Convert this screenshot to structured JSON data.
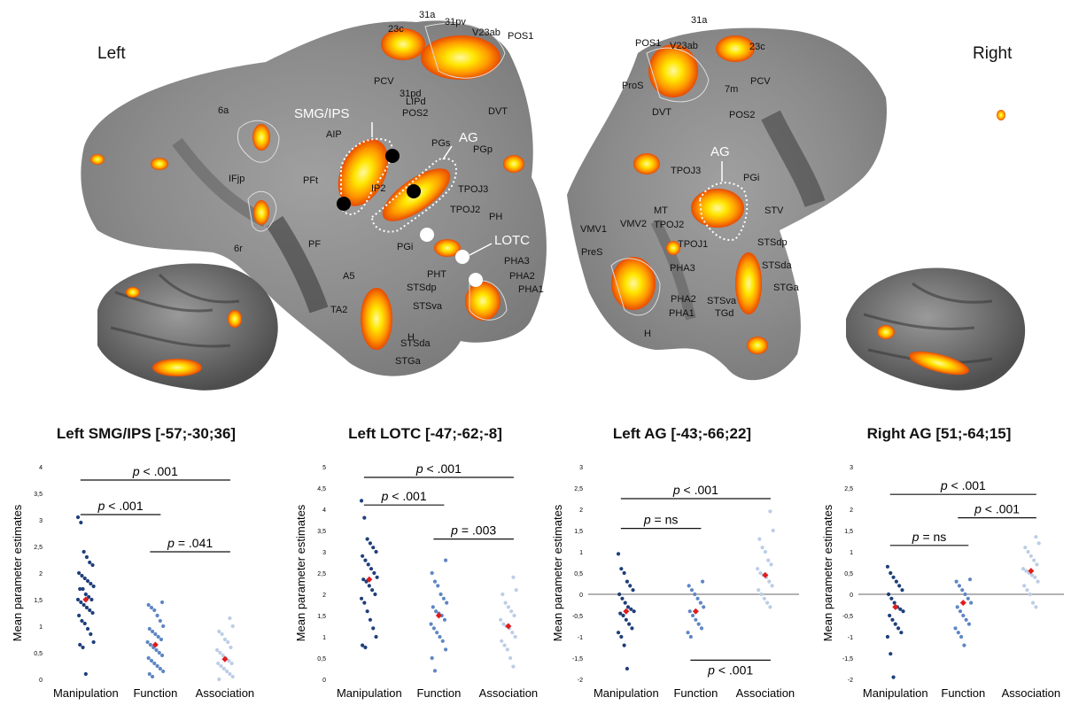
{
  "brain": {
    "left_label": "Left",
    "right_label": "Right",
    "highlight_labels": [
      "SMG/IPS",
      "AG",
      "LOTC",
      "AG"
    ],
    "left_regions": [
      "23c",
      "31a",
      "31pv",
      "V23ab",
      "POS1",
      "PCV",
      "31pd",
      "POS2",
      "DVT",
      "LIPd",
      "AIP",
      "PGs",
      "PGp",
      "6a",
      "PFt",
      "IP2",
      "TPOJ3",
      "TPOJ2",
      "PH",
      "IFjp",
      "PF",
      "PGi",
      "6r",
      "A5",
      "PHT",
      "STSdp",
      "PHA3",
      "PHA2",
      "PHA1",
      "TA2",
      "STSva",
      "H",
      "STSda",
      "STGa"
    ],
    "right_regions": [
      "31a",
      "POS1",
      "V23ab",
      "23c",
      "ProS",
      "7m",
      "PCV",
      "DVT",
      "POS2",
      "TPOJ3",
      "PGi",
      "MT",
      "STV",
      "VMV1",
      "VMV2",
      "TPOJ2",
      "TPOJ1",
      "STSdp",
      "PreS",
      "PHA3",
      "STSda",
      "PHA2",
      "STSva",
      "STGa",
      "PHA1",
      "TGd",
      "H"
    ]
  },
  "chart_data": [
    {
      "type": "scatter",
      "title": "Left SMG/IPS [-57;-30;36]",
      "ylabel": "Mean parameter estimates",
      "categories": [
        "Manipulation",
        "Function",
        "Association"
      ],
      "ylim": [
        0,
        4
      ],
      "yticks": [
        "0",
        "0,5",
        "1",
        "1,5",
        "2",
        "2,5",
        "3",
        "3,5",
        "4"
      ],
      "means": [
        1.5,
        0.65,
        0.38
      ],
      "series": [
        {
          "values": [
            3.05,
            2.95,
            2.4,
            2.3,
            2.2,
            2.15,
            2.0,
            1.95,
            1.9,
            1.85,
            1.8,
            1.75,
            1.7,
            1.7,
            1.6,
            1.55,
            1.5,
            1.5,
            1.45,
            1.4,
            1.35,
            1.3,
            1.25,
            1.2,
            1.1,
            1.05,
            0.95,
            0.85,
            0.7,
            0.65,
            0.6,
            0.1
          ]
        },
        {
          "values": [
            1.45,
            1.4,
            1.35,
            1.3,
            1.2,
            1.1,
            1.0,
            0.95,
            0.9,
            0.85,
            0.8,
            0.75,
            0.7,
            0.65,
            0.6,
            0.55,
            0.5,
            0.45,
            0.4,
            0.35,
            0.3,
            0.25,
            0.2,
            0.15,
            0.1,
            0.05
          ]
        },
        {
          "values": [
            1.15,
            1.0,
            0.9,
            0.85,
            0.75,
            0.7,
            0.6,
            0.55,
            0.5,
            0.45,
            0.4,
            0.35,
            0.3,
            0.3,
            0.25,
            0.2,
            0.15,
            0.1,
            0.05,
            0.0
          ]
        }
      ],
      "comparisons": [
        {
          "text": "p < .001",
          "from": 0,
          "to": 2,
          "y": 3.75
        },
        {
          "text": "p < .001",
          "from": 0,
          "to": 1,
          "y": 3.1
        },
        {
          "text": "p = .041",
          "from": 1,
          "to": 2,
          "y": 2.4
        }
      ]
    },
    {
      "type": "scatter",
      "title": "Left LOTC [-47;-62;-8]",
      "ylabel": "Mean parameter estimates",
      "categories": [
        "Manipulation",
        "Function",
        "Association"
      ],
      "ylim": [
        0,
        5
      ],
      "yticks": [
        "0",
        "0,5",
        "1",
        "1,5",
        "2",
        "2,5",
        "3",
        "3,5",
        "4",
        "4,5",
        "5"
      ],
      "means": [
        2.35,
        1.5,
        1.25
      ],
      "series": [
        {
          "values": [
            4.2,
            3.8,
            3.3,
            3.2,
            3.1,
            3.0,
            2.9,
            2.8,
            2.7,
            2.6,
            2.5,
            2.4,
            2.35,
            2.3,
            2.2,
            2.1,
            2.0,
            1.9,
            1.8,
            1.6,
            1.4,
            1.2,
            1.0,
            0.8,
            0.75
          ]
        },
        {
          "values": [
            2.8,
            2.5,
            2.3,
            2.2,
            2.0,
            1.9,
            1.8,
            1.7,
            1.6,
            1.55,
            1.5,
            1.4,
            1.3,
            1.2,
            1.1,
            1.0,
            0.9,
            0.7,
            0.5,
            0.2
          ]
        },
        {
          "values": [
            2.4,
            2.1,
            2.0,
            1.8,
            1.7,
            1.6,
            1.5,
            1.4,
            1.3,
            1.25,
            1.2,
            1.1,
            1.0,
            0.9,
            0.8,
            0.7,
            0.5,
            0.3
          ]
        }
      ],
      "comparisons": [
        {
          "text": "p < .001",
          "from": 0,
          "to": 2,
          "y": 4.75
        },
        {
          "text": "p < .001",
          "from": 0,
          "to": 1,
          "y": 4.1
        },
        {
          "text": "p = .003",
          "from": 1,
          "to": 2,
          "y": 3.3
        }
      ]
    },
    {
      "type": "scatter",
      "title": "Left AG [-43;-66;22]",
      "ylabel": "Mean parameter estimates",
      "categories": [
        "Manipulation",
        "Function",
        "Association"
      ],
      "ylim": [
        -2,
        3
      ],
      "yticks": [
        "-2",
        "-1,5",
        "-1",
        "-0,5",
        "0",
        "0,5",
        "1",
        "1,5",
        "2",
        "2,5",
        "3"
      ],
      "means": [
        -0.4,
        -0.4,
        0.45
      ],
      "series": [
        {
          "values": [
            0.95,
            0.6,
            0.5,
            0.3,
            0.2,
            0.1,
            0.0,
            -0.1,
            -0.2,
            -0.3,
            -0.35,
            -0.4,
            -0.45,
            -0.5,
            -0.6,
            -0.7,
            -0.8,
            -0.9,
            -1.0,
            -1.2,
            -1.75
          ]
        },
        {
          "values": [
            0.3,
            0.2,
            0.1,
            0.0,
            -0.1,
            -0.2,
            -0.3,
            -0.4,
            -0.5,
            -0.6,
            -0.7,
            -0.8,
            -0.9,
            -1.0
          ]
        },
        {
          "values": [
            1.95,
            1.5,
            1.3,
            1.1,
            1.0,
            0.8,
            0.7,
            0.6,
            0.5,
            0.45,
            0.4,
            0.3,
            0.2,
            0.1,
            0.0,
            -0.1,
            -0.2,
            -0.3
          ]
        }
      ],
      "comparisons": [
        {
          "text": "p < .001",
          "from": 0,
          "to": 2,
          "y": 2.25
        },
        {
          "text": "p = ns",
          "from": 0,
          "to": 1,
          "y": 1.55
        },
        {
          "text": "p < .001",
          "from": 1,
          "to": 2,
          "y": -1.55,
          "below": true
        }
      ]
    },
    {
      "type": "scatter",
      "title": "Right AG [51;-64;15]",
      "ylabel": "Mean parameter estimates",
      "categories": [
        "Manipulation",
        "Function",
        "Association"
      ],
      "ylim": [
        -2,
        3
      ],
      "yticks": [
        "-2",
        "-1,5",
        "-1",
        "-0,5",
        "0",
        "0,5",
        "1",
        "1,5",
        "2",
        "2,5",
        "3"
      ],
      "means": [
        -0.3,
        -0.2,
        0.55
      ],
      "series": [
        {
          "values": [
            0.65,
            0.5,
            0.4,
            0.3,
            0.2,
            0.1,
            0.0,
            -0.1,
            -0.2,
            -0.3,
            -0.35,
            -0.4,
            -0.5,
            -0.6,
            -0.7,
            -0.8,
            -0.9,
            -1.0,
            -1.4,
            -1.95
          ]
        },
        {
          "values": [
            0.35,
            0.3,
            0.2,
            0.1,
            0.0,
            -0.1,
            -0.2,
            -0.3,
            -0.4,
            -0.5,
            -0.6,
            -0.7,
            -0.8,
            -0.9,
            -1.0,
            -1.2
          ]
        },
        {
          "values": [
            1.35,
            1.2,
            1.1,
            1.0,
            0.9,
            0.8,
            0.7,
            0.6,
            0.55,
            0.5,
            0.45,
            0.4,
            0.3,
            0.2,
            0.1,
            0.0,
            -0.2,
            -0.3
          ]
        }
      ],
      "comparisons": [
        {
          "text": "p < .001",
          "from": 0,
          "to": 2,
          "y": 2.35
        },
        {
          "text": "p < .001",
          "from": 1,
          "to": 2,
          "y": 1.8
        },
        {
          "text": "p = ns",
          "from": 0,
          "to": 1,
          "y": 1.15
        }
      ]
    }
  ],
  "colors": {
    "manipulation": "#1f3f7a",
    "function": "#5e86c4",
    "association": "#bccde6",
    "mean_marker": "#e01c1c",
    "activation_hot": "#ffe600",
    "activation_mid": "#ff8a00",
    "activation_edge": "#e84a00",
    "flatmap_gray": "#8a8a8a",
    "cortex_gray": "#6d6d6d"
  }
}
